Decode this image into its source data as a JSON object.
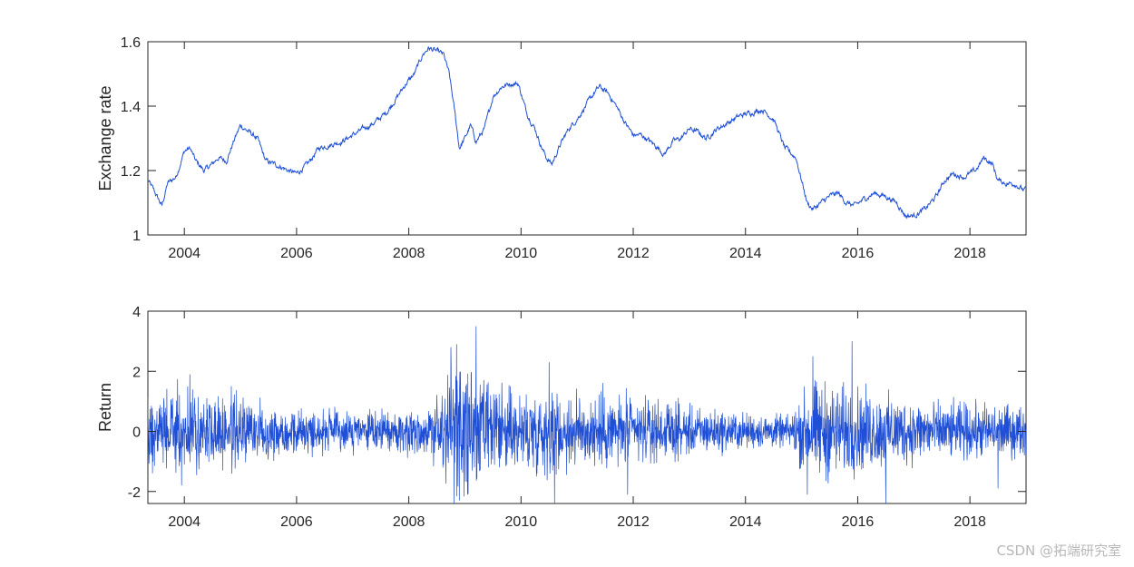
{
  "watermark": "CSDN @拓端研究室",
  "colors": {
    "series": "#1f4fd6",
    "axes": "#262626",
    "background": "#ffffff"
  },
  "chart_data": [
    {
      "type": "line",
      "ylabel": "Exchange rate",
      "xlim": [
        2003.35,
        2019.0
      ],
      "ylim": [
        1.0,
        1.6
      ],
      "xticks": [
        2004,
        2006,
        2008,
        2010,
        2012,
        2014,
        2016,
        2018
      ],
      "xtick_labels": [
        "2004",
        "2006",
        "2008",
        "2010",
        "2012",
        "2014",
        "2016",
        "2018"
      ],
      "yticks": [
        1,
        1.2,
        1.4,
        1.6
      ],
      "ytick_labels": [
        "1",
        "1.2",
        "1.4",
        "1.6"
      ],
      "grid": false,
      "series": [
        {
          "x": [
            2003.35,
            2003.45,
            2003.6,
            2003.7,
            2003.85,
            2004.0,
            2004.1,
            2004.2,
            2004.35,
            2004.5,
            2004.6,
            2004.75,
            2004.9,
            2005.0,
            2005.15,
            2005.3,
            2005.45,
            2005.6,
            2005.75,
            2005.85,
            2006.0,
            2006.2,
            2006.4,
            2006.6,
            2006.8,
            2007.0,
            2007.2,
            2007.4,
            2007.6,
            2007.8,
            2007.95,
            2008.1,
            2008.25,
            2008.35,
            2008.5,
            2008.62,
            2008.72,
            2008.82,
            2008.9,
            2009.0,
            2009.1,
            2009.2,
            2009.35,
            2009.5,
            2009.65,
            2009.8,
            2009.95,
            2010.1,
            2010.25,
            2010.35,
            2010.45,
            2010.55,
            2010.7,
            2010.85,
            2011.0,
            2011.15,
            2011.3,
            2011.4,
            2011.55,
            2011.7,
            2011.85,
            2012.0,
            2012.15,
            2012.3,
            2012.45,
            2012.55,
            2012.7,
            2012.85,
            2013.0,
            2013.15,
            2013.3,
            2013.5,
            2013.7,
            2013.9,
            2014.1,
            2014.3,
            2014.5,
            2014.7,
            2014.9,
            2015.0,
            2015.1,
            2015.2,
            2015.35,
            2015.5,
            2015.65,
            2015.8,
            2015.95,
            2016.1,
            2016.3,
            2016.5,
            2016.7,
            2016.85,
            2017.0,
            2017.2,
            2017.4,
            2017.55,
            2017.7,
            2017.9,
            2018.1,
            2018.25,
            2018.4,
            2018.5,
            2018.65,
            2018.8,
            2018.95,
            2019.0
          ],
          "y": [
            1.17,
            1.14,
            1.09,
            1.16,
            1.18,
            1.26,
            1.27,
            1.23,
            1.2,
            1.22,
            1.24,
            1.23,
            1.3,
            1.34,
            1.32,
            1.3,
            1.23,
            1.22,
            1.21,
            1.2,
            1.19,
            1.22,
            1.27,
            1.28,
            1.29,
            1.31,
            1.33,
            1.35,
            1.38,
            1.43,
            1.47,
            1.5,
            1.56,
            1.58,
            1.57,
            1.56,
            1.5,
            1.38,
            1.27,
            1.3,
            1.34,
            1.29,
            1.33,
            1.43,
            1.46,
            1.47,
            1.47,
            1.38,
            1.33,
            1.28,
            1.24,
            1.22,
            1.28,
            1.33,
            1.36,
            1.4,
            1.44,
            1.46,
            1.44,
            1.4,
            1.35,
            1.31,
            1.31,
            1.29,
            1.27,
            1.25,
            1.29,
            1.3,
            1.33,
            1.32,
            1.3,
            1.33,
            1.35,
            1.37,
            1.38,
            1.39,
            1.36,
            1.27,
            1.24,
            1.17,
            1.1,
            1.08,
            1.1,
            1.12,
            1.13,
            1.1,
            1.09,
            1.11,
            1.13,
            1.12,
            1.1,
            1.06,
            1.06,
            1.08,
            1.12,
            1.17,
            1.19,
            1.18,
            1.2,
            1.24,
            1.22,
            1.17,
            1.16,
            1.16,
            1.14,
            1.14
          ]
        }
      ]
    },
    {
      "type": "line",
      "ylabel": "Return",
      "xlim": [
        2003.35,
        2019.0
      ],
      "ylim": [
        -2.4,
        4.0
      ],
      "xticks": [
        2004,
        2006,
        2008,
        2010,
        2012,
        2014,
        2016,
        2018
      ],
      "xtick_labels": [
        "2004",
        "2006",
        "2008",
        "2010",
        "2012",
        "2014",
        "2016",
        "2018"
      ],
      "yticks": [
        -2,
        0,
        2,
        4
      ],
      "ytick_labels": [
        "-2",
        "0",
        "2",
        "4"
      ],
      "grid": false,
      "volatility_profile": {
        "x": [
          2003.35,
          2004.0,
          2004.5,
          2005.0,
          2005.5,
          2006.0,
          2006.5,
          2007.0,
          2007.5,
          2008.0,
          2008.4,
          2008.7,
          2008.9,
          2009.2,
          2009.5,
          2010.0,
          2010.4,
          2010.8,
          2011.2,
          2011.6,
          2012.0,
          2012.5,
          2013.0,
          2013.5,
          2014.0,
          2014.5,
          2014.8,
          2015.0,
          2015.3,
          2015.6,
          2016.0,
          2016.5,
          2017.0,
          2017.5,
          2018.0,
          2018.5,
          2019.0
        ],
        "y": [
          0.8,
          0.75,
          0.7,
          0.65,
          0.55,
          0.45,
          0.42,
          0.38,
          0.35,
          0.45,
          0.55,
          1.1,
          1.35,
          1.15,
          0.9,
          0.8,
          0.85,
          0.75,
          0.72,
          0.75,
          0.65,
          0.55,
          0.48,
          0.42,
          0.35,
          0.32,
          0.3,
          0.75,
          1.0,
          0.9,
          0.82,
          0.7,
          0.62,
          0.55,
          0.55,
          0.52,
          0.5
        ]
      },
      "spikes": [
        {
          "x": 2008.75,
          "y": 2.8
        },
        {
          "x": 2008.85,
          "y": 2.9
        },
        {
          "x": 2009.2,
          "y": 3.5
        },
        {
          "x": 2008.9,
          "y": -2.3
        },
        {
          "x": 2009.05,
          "y": -2.1
        },
        {
          "x": 2010.6,
          "y": -2.4
        },
        {
          "x": 2010.5,
          "y": 2.3
        },
        {
          "x": 2011.9,
          "y": -2.1
        },
        {
          "x": 2015.2,
          "y": 2.5
        },
        {
          "x": 2015.1,
          "y": -2.1
        },
        {
          "x": 2015.9,
          "y": 3.0
        },
        {
          "x": 2016.5,
          "y": -2.4
        },
        {
          "x": 2018.5,
          "y": -1.9
        },
        {
          "x": 2004.1,
          "y": 1.9
        },
        {
          "x": 2003.95,
          "y": -1.8
        }
      ]
    }
  ]
}
